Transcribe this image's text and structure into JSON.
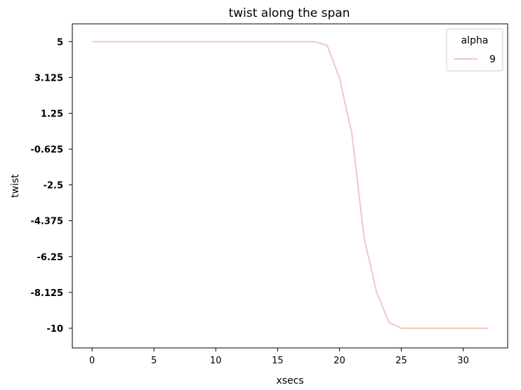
{
  "chart_data": {
    "type": "line",
    "title": "twist along the span",
    "xlabel": "xsecs",
    "ylabel": "twist",
    "xlim": [
      -1.6,
      33.6
    ],
    "ylim": [
      -11.03,
      5.93
    ],
    "xticks": [
      0,
      5,
      10,
      15,
      20,
      25,
      30
    ],
    "xtick_labels": [
      "0",
      "5",
      "10",
      "15",
      "20",
      "25",
      "30"
    ],
    "yticks": [
      5,
      3.125,
      1.25,
      -0.625,
      -2.5,
      -4.375,
      -6.25,
      -8.125,
      -10
    ],
    "ytick_labels": [
      "5",
      "3.125",
      "1.25",
      "-0.625",
      "-2.5",
      "-4.375",
      "-6.25",
      "-8.125",
      "-10"
    ],
    "grid": false,
    "legend": {
      "title": "alpha",
      "placement": "top-right"
    },
    "series": [
      {
        "name": "9",
        "color": "#f0c8c0",
        "x": [
          0,
          1,
          2,
          3,
          4,
          5,
          6,
          7,
          8,
          9,
          10,
          11,
          12,
          13,
          14,
          15,
          16,
          17,
          18,
          19,
          20,
          21,
          22,
          23,
          24,
          25,
          26,
          27,
          28,
          29,
          30,
          31,
          32
        ],
        "y": [
          5,
          5,
          5,
          5,
          5,
          5,
          5,
          5,
          5,
          5,
          5,
          5,
          5,
          5,
          5,
          5,
          5,
          5,
          5,
          4.8,
          3.1,
          0.2,
          -5.3,
          -8.1,
          -9.7,
          -10,
          -10,
          -10,
          -10,
          -10,
          -10,
          -10,
          -10
        ]
      }
    ]
  }
}
